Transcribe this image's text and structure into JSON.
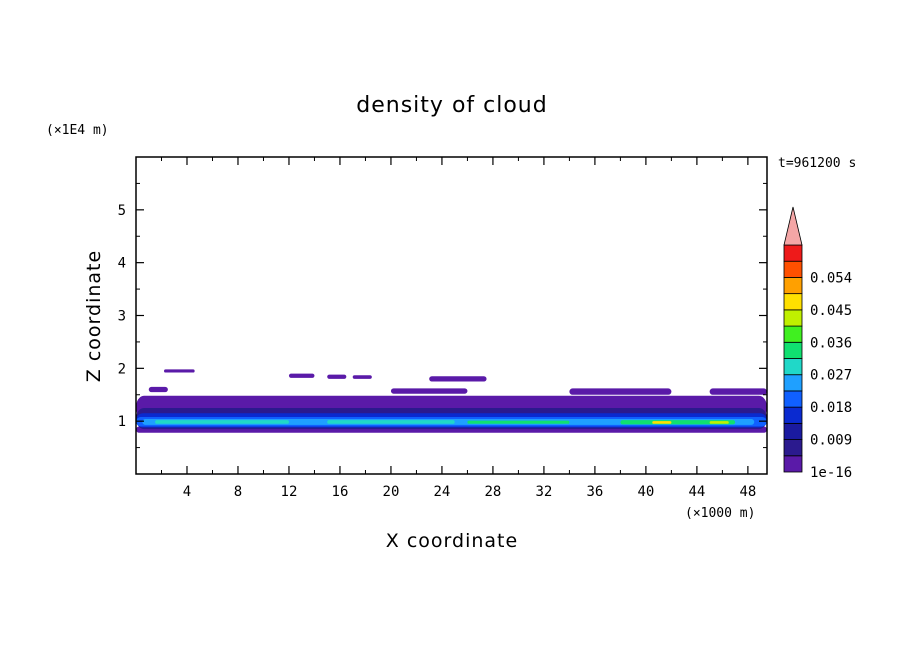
{
  "chart_data": {
    "type": "heatmap",
    "title": "density of cloud",
    "xlabel": "X coordinate",
    "ylabel": "Z coordinate",
    "x_unit": "(×1000 m)",
    "y_unit": "(×1E4 m)",
    "time_label": "t=961200 s",
    "xlim": [
      0,
      49.5
    ],
    "ylim": [
      0,
      6
    ],
    "x_ticks": [
      4,
      8,
      12,
      16,
      20,
      24,
      28,
      32,
      36,
      40,
      44,
      48
    ],
    "y_ticks": [
      1,
      2,
      3,
      4,
      5
    ],
    "colorbar": {
      "levels": [
        1e-16,
        0.0045,
        0.009,
        0.0135,
        0.018,
        0.0225,
        0.027,
        0.0315,
        0.036,
        0.0405,
        0.045,
        0.0495,
        0.054,
        0.0585
      ],
      "colors": [
        "#5a1aa8",
        "#2b1a8e",
        "#1a1aa0",
        "#0a2ad0",
        "#1060ff",
        "#1fa0ff",
        "#20d8c8",
        "#10e070",
        "#40f020",
        "#c0f000",
        "#ffe000",
        "#ffa000",
        "#ff5000",
        "#ee1a1a"
      ],
      "over_color": "#f4a6a6",
      "labels": [
        "1e-16",
        "0.009",
        "0.018",
        "0.027",
        "0.036",
        "0.045",
        "0.054"
      ]
    },
    "regions": [
      {
        "x0": 0.0,
        "x1": 49.5,
        "z0": 1.05,
        "z1": 1.48,
        "level": 0
      },
      {
        "x0": 0.0,
        "x1": 49.5,
        "z0": 0.78,
        "z1": 0.9,
        "level": 0
      },
      {
        "x0": 0.0,
        "x1": 49.5,
        "z0": 0.85,
        "z1": 1.25,
        "level": 1
      },
      {
        "x0": 0.0,
        "x1": 49.5,
        "z0": 0.88,
        "z1": 1.15,
        "level": 3
      },
      {
        "x0": 0.0,
        "x1": 49.5,
        "z0": 0.9,
        "z1": 1.08,
        "level": 4
      },
      {
        "x0": 0.5,
        "x1": 48.5,
        "z0": 0.93,
        "z1": 1.04,
        "level": 5
      },
      {
        "x0": 1.5,
        "x1": 12.0,
        "z0": 0.95,
        "z1": 1.02,
        "level": 6
      },
      {
        "x0": 15.0,
        "x1": 25.0,
        "z0": 0.95,
        "z1": 1.02,
        "level": 6
      },
      {
        "x0": 26.0,
        "x1": 34.0,
        "z0": 0.95,
        "z1": 1.01,
        "level": 7
      },
      {
        "x0": 38.0,
        "x1": 47.0,
        "z0": 0.94,
        "z1": 1.02,
        "level": 7
      },
      {
        "x0": 40.5,
        "x1": 42.0,
        "z0": 0.95,
        "z1": 1.0,
        "level": 10
      },
      {
        "x0": 45.0,
        "x1": 46.5,
        "z0": 0.95,
        "z1": 1.0,
        "level": 9
      },
      {
        "x0": 1.0,
        "x1": 2.5,
        "z0": 1.55,
        "z1": 1.65,
        "level": 0
      },
      {
        "x0": 2.2,
        "x1": 4.6,
        "z0": 1.92,
        "z1": 1.98,
        "level": 0
      },
      {
        "x0": 12.0,
        "x1": 14.0,
        "z0": 1.82,
        "z1": 1.9,
        "level": 0
      },
      {
        "x0": 15.0,
        "x1": 16.5,
        "z0": 1.8,
        "z1": 1.88,
        "level": 0
      },
      {
        "x0": 17.0,
        "x1": 18.5,
        "z0": 1.8,
        "z1": 1.87,
        "level": 0
      },
      {
        "x0": 23.0,
        "x1": 27.5,
        "z0": 1.75,
        "z1": 1.85,
        "level": 0
      },
      {
        "x0": 20.0,
        "x1": 26.0,
        "z0": 1.52,
        "z1": 1.62,
        "level": 0
      },
      {
        "x0": 34.0,
        "x1": 42.0,
        "z0": 1.5,
        "z1": 1.62,
        "level": 0
      },
      {
        "x0": 45.0,
        "x1": 49.5,
        "z0": 1.5,
        "z1": 1.62,
        "level": 0
      }
    ]
  }
}
